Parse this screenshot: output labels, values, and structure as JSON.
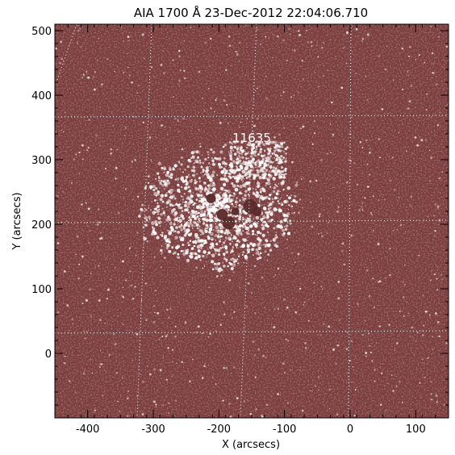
{
  "title": "AIA 1700 Å 23-Dec-2012 22:04:06.710",
  "active_region": "11635",
  "axes": {
    "xlabel": "X (arcsecs)",
    "ylabel": "Y (arcsecs)",
    "xlim": [
      -450,
      150
    ],
    "ylim": [
      -100,
      510
    ],
    "xticks": [
      -400,
      -300,
      -200,
      -100,
      0,
      100
    ],
    "xtick_labels": [
      "-400",
      "-300",
      "-200",
      "-100",
      "0",
      "100"
    ],
    "yticks": [
      0,
      100,
      200,
      300,
      400,
      500
    ],
    "ytick_labels": [
      "0",
      "100",
      "200",
      "300",
      "400",
      "500"
    ]
  },
  "colors": {
    "background": "#7b3d3d",
    "plage": "#ffffff",
    "sunspot": "#5a2a2a",
    "grid": "#ffffff"
  }
}
